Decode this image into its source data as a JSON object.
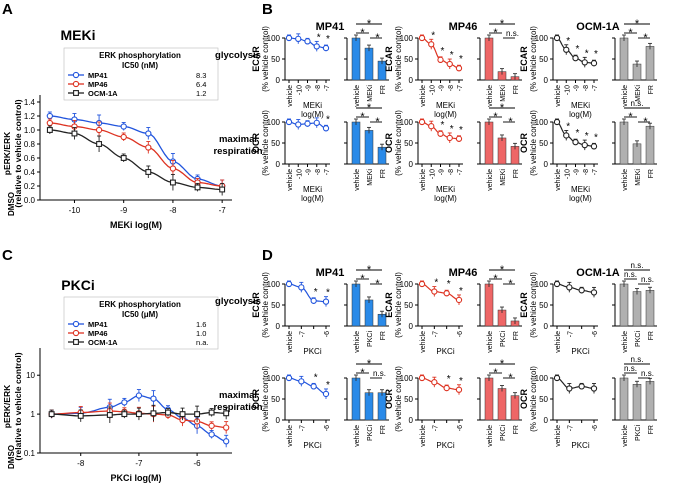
{
  "colors": {
    "MP41": "#2255dd",
    "MP46": "#dd3322",
    "OCM1A": "#222222",
    "grey": "#b0b0b0",
    "blue_fill": "#2a8ae8",
    "red_fill": "#ee6666"
  },
  "panels": {
    "A": "A",
    "B": "B",
    "C": "C",
    "D": "D"
  },
  "dose_A": {
    "title": "MEKi",
    "legend_header": [
      "ERK phosphorylation",
      "IC50 (nM)"
    ],
    "legend": [
      {
        "name": "MP41",
        "ic50": "8.3",
        "color": "MP41"
      },
      {
        "name": "MP46",
        "ic50": "6.4",
        "color": "MP46"
      },
      {
        "name": "OCM-1A",
        "ic50": "1.2",
        "color": "OCM1A"
      }
    ],
    "ylabel": [
      "pERK/ERK",
      "(relative to vehicle control)"
    ],
    "xlabel": "MEKi log(M)",
    "yticks": [
      "0.0",
      "0.2",
      "0.4",
      "0.6",
      "0.8",
      "1.0",
      "1.2",
      "1.4"
    ],
    "xticks": [
      "-10",
      "-9",
      "-8",
      "-7"
    ],
    "dmso": "DMSO"
  },
  "dose_C": {
    "title": "PKCi",
    "legend_header": [
      "ERK phosphorylation",
      "IC50 (μM)"
    ],
    "legend": [
      {
        "name": "MP41",
        "ic50": "1.6",
        "color": "MP41"
      },
      {
        "name": "MP46",
        "ic50": "1.0",
        "color": "MP46"
      },
      {
        "name": "OCM-1A",
        "ic50": "n.a.",
        "color": "OCM1A"
      }
    ],
    "ylabel": [
      "pERK/ERK",
      "(relative to vehicle control)"
    ],
    "xlabel": "PKCi log(M)",
    "yticks": [
      "0.1",
      "1",
      "10"
    ],
    "xticks": [
      "-8",
      "-7",
      "-6"
    ],
    "dmso": "DMSO"
  },
  "col_titles": [
    "MP41",
    "MP46",
    "OCM-1A"
  ],
  "row_labels": {
    "glycolysis": "glycolysis",
    "respiration": [
      "maximal",
      "respiration"
    ]
  },
  "axis_labels": {
    "ecar": "ECAR",
    "ocr": "OCR",
    "pct": "(% vehicle control)",
    "meki": [
      "MEKi",
      "log(M)"
    ],
    "pkci": "PKCi"
  },
  "sig": {
    "star": "*",
    "ns": "n.s."
  },
  "chart_data": [
    {
      "type": "line",
      "panel": "A",
      "title": "MEKi",
      "xlabel": "MEKi log(M)",
      "ylabel": "pERK/ERK (relative to vehicle control)",
      "ylim": [
        0,
        1.5
      ],
      "series": [
        {
          "name": "MP41",
          "x": [
            -10.5,
            -10,
            -9.5,
            -9,
            -8.5,
            -8,
            -7.5,
            -7
          ],
          "y": [
            1.2,
            1.15,
            1.1,
            1.05,
            0.95,
            0.55,
            0.3,
            0.2
          ]
        },
        {
          "name": "MP46",
          "x": [
            -10.5,
            -10,
            -9.5,
            -9,
            -8.5,
            -8,
            -7.5,
            -7
          ],
          "y": [
            1.1,
            1.05,
            1.0,
            0.9,
            0.75,
            0.45,
            0.25,
            0.2
          ]
        },
        {
          "name": "OCM-1A",
          "x": [
            -10.5,
            -10,
            -9.5,
            -9,
            -8.5,
            -8,
            -7.5,
            -7
          ],
          "y": [
            1.0,
            0.95,
            0.8,
            0.6,
            0.4,
            0.25,
            0.18,
            0.15
          ]
        }
      ]
    },
    {
      "type": "line",
      "panel": "C",
      "title": "PKCi",
      "xlabel": "PKCi log(M)",
      "ylabel": "pERK/ERK (relative to vehicle control)",
      "yscale": "log",
      "ylim": [
        0.1,
        50
      ],
      "series": [
        {
          "name": "MP41",
          "x": [
            -8.5,
            -8,
            -7.5,
            -7.25,
            -7,
            -6.75,
            -6.5,
            -6.25,
            -6,
            -5.75,
            -5.5
          ],
          "y": [
            1.0,
            1.05,
            1.5,
            2.0,
            3.0,
            2.5,
            1.3,
            0.8,
            0.5,
            0.3,
            0.2
          ]
        },
        {
          "name": "MP46",
          "x": [
            -8.5,
            -8,
            -7.5,
            -7.25,
            -7,
            -6.75,
            -6.5,
            -6.25,
            -6,
            -5.75,
            -5.5
          ],
          "y": [
            1.0,
            1.1,
            1.2,
            1.15,
            1.05,
            1.0,
            0.95,
            0.7,
            0.65,
            0.5,
            0.45
          ]
        },
        {
          "name": "OCM-1A",
          "x": [
            -8.5,
            -8,
            -7.5,
            -7.25,
            -7,
            -6.75,
            -6.5,
            -6.25,
            -6,
            -5.75,
            -5.5
          ],
          "y": [
            1.0,
            0.9,
            0.95,
            1.0,
            1.0,
            1.05,
            1.1,
            1.0,
            1.0,
            1.1,
            1.05
          ]
        }
      ]
    },
    {
      "type": "line",
      "panel": "B",
      "metric": "ECAR",
      "cell": "MP41",
      "x": [
        "vehicle",
        -10,
        -9,
        -8,
        -7
      ],
      "y": [
        100,
        98,
        92,
        80,
        76
      ],
      "ylim": [
        0,
        100
      ]
    },
    {
      "type": "bar",
      "panel": "B",
      "metric": "ECAR",
      "cell": "MP41",
      "categories": [
        "vehicle",
        "MEKi",
        "FR"
      ],
      "values": [
        100,
        76,
        45
      ]
    },
    {
      "type": "line",
      "panel": "B",
      "metric": "ECAR",
      "cell": "MP46",
      "x": [
        "vehicle",
        -10,
        -9,
        -8,
        -7
      ],
      "y": [
        100,
        85,
        48,
        38,
        28
      ]
    },
    {
      "type": "bar",
      "panel": "B",
      "metric": "ECAR",
      "cell": "MP46",
      "categories": [
        "vehicle",
        "MEKi",
        "FR"
      ],
      "values": [
        100,
        20,
        8
      ]
    },
    {
      "type": "line",
      "panel": "B",
      "metric": "ECAR",
      "cell": "OCM-1A",
      "x": [
        "vehicle",
        -10,
        -9,
        -8,
        -7
      ],
      "y": [
        100,
        72,
        52,
        42,
        40
      ]
    },
    {
      "type": "bar",
      "panel": "B",
      "metric": "ECAR",
      "cell": "OCM-1A",
      "categories": [
        "vehicle",
        "MEKi",
        "FR"
      ],
      "values": [
        100,
        38,
        80
      ]
    },
    {
      "type": "line",
      "panel": "B",
      "metric": "OCR",
      "cell": "MP41",
      "x": [
        "vehicle",
        -10,
        -9,
        -8,
        -7
      ],
      "y": [
        100,
        94,
        96,
        98,
        85
      ]
    },
    {
      "type": "bar",
      "panel": "B",
      "metric": "OCR",
      "cell": "MP41",
      "categories": [
        "vehicle",
        "MEKi",
        "FR"
      ],
      "values": [
        100,
        80,
        40
      ]
    },
    {
      "type": "line",
      "panel": "B",
      "metric": "OCR",
      "cell": "MP46",
      "x": [
        "vehicle",
        -10,
        -9,
        -8,
        -7
      ],
      "y": [
        100,
        90,
        72,
        62,
        60
      ]
    },
    {
      "type": "bar",
      "panel": "B",
      "metric": "OCR",
      "cell": "MP46",
      "categories": [
        "vehicle",
        "MEKi",
        "FR"
      ],
      "values": [
        100,
        62,
        42
      ]
    },
    {
      "type": "line",
      "panel": "B",
      "metric": "OCR",
      "cell": "OCM-1A",
      "x": [
        "vehicle",
        -10,
        -9,
        -8,
        -7
      ],
      "y": [
        100,
        68,
        52,
        45,
        42
      ]
    },
    {
      "type": "bar",
      "panel": "B",
      "metric": "OCR",
      "cell": "OCM-1A",
      "categories": [
        "vehicle",
        "MEKi",
        "FR"
      ],
      "values": [
        100,
        48,
        90
      ]
    },
    {
      "type": "line",
      "panel": "D",
      "metric": "ECAR",
      "cell": "MP41",
      "x": [
        "vehicle",
        -7,
        -6.5,
        -6
      ],
      "y": [
        100,
        92,
        60,
        58
      ]
    },
    {
      "type": "bar",
      "panel": "D",
      "metric": "ECAR",
      "cell": "MP41",
      "categories": [
        "vehicle",
        "PKCi",
        "FR"
      ],
      "values": [
        100,
        62,
        28
      ]
    },
    {
      "type": "line",
      "panel": "D",
      "metric": "ECAR",
      "cell": "MP46",
      "x": [
        "vehicle",
        -7,
        -6.5,
        -6
      ],
      "y": [
        100,
        82,
        78,
        62
      ]
    },
    {
      "type": "bar",
      "panel": "D",
      "metric": "ECAR",
      "cell": "MP46",
      "categories": [
        "vehicle",
        "PKCi",
        "FR"
      ],
      "values": [
        100,
        38,
        12
      ]
    },
    {
      "type": "line",
      "panel": "D",
      "metric": "ECAR",
      "cell": "OCM-1A",
      "x": [
        "vehicle",
        -7,
        -6.5,
        -6
      ],
      "y": [
        100,
        92,
        85,
        80
      ]
    },
    {
      "type": "bar",
      "panel": "D",
      "metric": "ECAR",
      "cell": "OCM-1A",
      "categories": [
        "vehicle",
        "PKCi",
        "FR"
      ],
      "values": [
        100,
        82,
        85
      ]
    },
    {
      "type": "line",
      "panel": "D",
      "metric": "OCR",
      "cell": "MP41",
      "x": [
        "vehicle",
        -7,
        -6.5,
        -6
      ],
      "y": [
        100,
        92,
        80,
        62
      ]
    },
    {
      "type": "bar",
      "panel": "D",
      "metric": "OCR",
      "cell": "MP41",
      "categories": [
        "vehicle",
        "PKCi",
        "FR"
      ],
      "values": [
        100,
        65,
        65
      ]
    },
    {
      "type": "line",
      "panel": "D",
      "metric": "OCR",
      "cell": "MP46",
      "x": [
        "vehicle",
        -7,
        -6.5,
        -6
      ],
      "y": [
        100,
        90,
        76,
        72
      ]
    },
    {
      "type": "bar",
      "panel": "D",
      "metric": "OCR",
      "cell": "MP46",
      "categories": [
        "vehicle",
        "PKCi",
        "FR"
      ],
      "values": [
        100,
        75,
        58
      ]
    },
    {
      "type": "line",
      "panel": "D",
      "metric": "OCR",
      "cell": "OCM-1A",
      "x": [
        "vehicle",
        -7,
        -6.5,
        -6
      ],
      "y": [
        100,
        75,
        80,
        75
      ]
    },
    {
      "type": "bar",
      "panel": "D",
      "metric": "OCR",
      "cell": "OCM-1A",
      "categories": [
        "vehicle",
        "PKCi",
        "FR"
      ],
      "values": [
        100,
        85,
        92
      ]
    }
  ]
}
